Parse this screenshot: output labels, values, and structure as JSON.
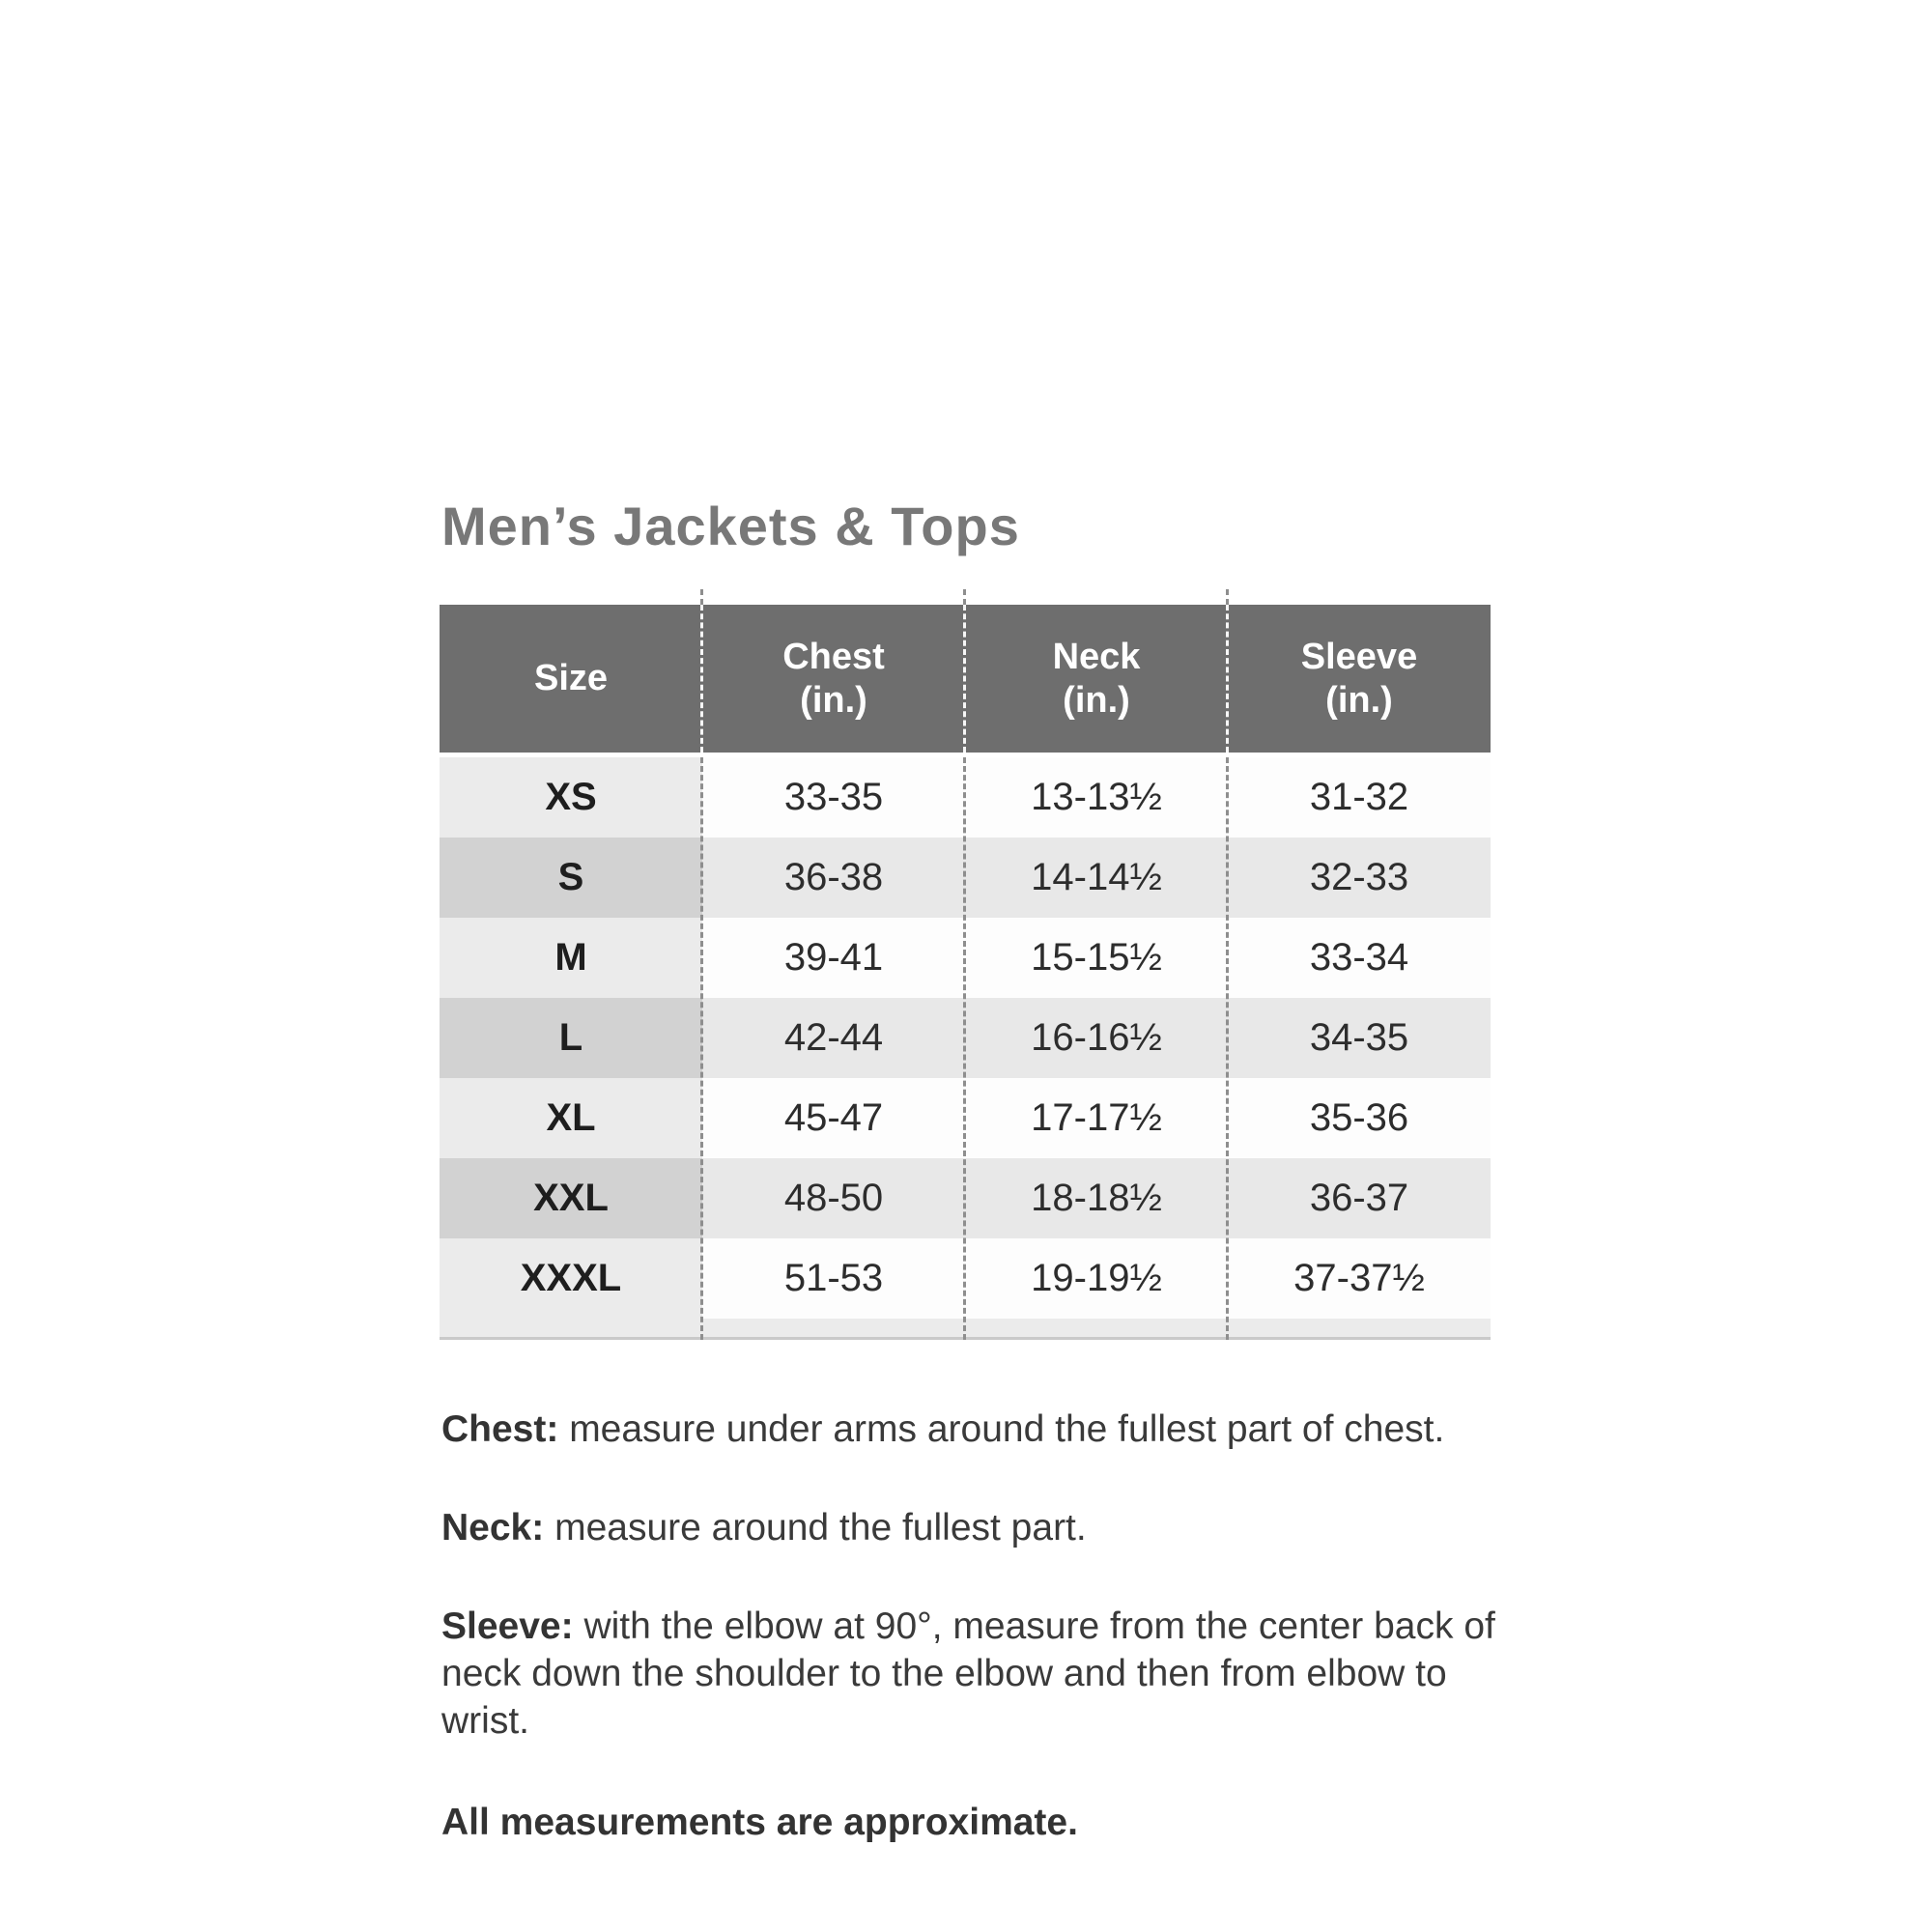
{
  "title": "Men’s Jackets & Tops",
  "table": {
    "columns": [
      {
        "label": "Size",
        "unit": ""
      },
      {
        "label": "Chest",
        "unit": "(in.)"
      },
      {
        "label": "Neck",
        "unit": "(in.)"
      },
      {
        "label": "Sleeve",
        "unit": "(in.)"
      }
    ],
    "rows": [
      {
        "size": "XS",
        "chest": "33-35",
        "neck": "13-13½",
        "sleeve": "31-32"
      },
      {
        "size": "S",
        "chest": "36-38",
        "neck": "14-14½",
        "sleeve": "32-33"
      },
      {
        "size": "M",
        "chest": "39-41",
        "neck": "15-15½",
        "sleeve": "33-34"
      },
      {
        "size": "L",
        "chest": "42-44",
        "neck": "16-16½",
        "sleeve": "34-35"
      },
      {
        "size": "XL",
        "chest": "45-47",
        "neck": "17-17½",
        "sleeve": "35-36"
      },
      {
        "size": "XXL",
        "chest": "48-50",
        "neck": "18-18½",
        "sleeve": "36-37"
      },
      {
        "size": "XXXL",
        "chest": "51-53",
        "neck": "19-19½",
        "sleeve": "37-37½"
      }
    ]
  },
  "notes": [
    {
      "term": "Chest:",
      "text": "measure under arms around the fullest part of chest."
    },
    {
      "term": "Neck:",
      "text": "measure around the fullest part."
    },
    {
      "term": "Sleeve:",
      "text": "with the elbow at 90°, measure from the center back of neck down the shoulder to the elbow and then from elbow to wrist."
    }
  ],
  "footnote": "All measurements are approximate.",
  "colors": {
    "header_bg": "#6e6e6e",
    "header_text": "#ffffff",
    "row_light_size_bg": "#ebebeb",
    "row_light_data_bg": "#fdfdfd",
    "row_dark_size_bg": "#d2d2d2",
    "row_dark_data_bg": "#e8e8e8",
    "divider_dash": "#8e8e8e",
    "title_text": "#787878",
    "body_text": "#3a3a3a"
  }
}
